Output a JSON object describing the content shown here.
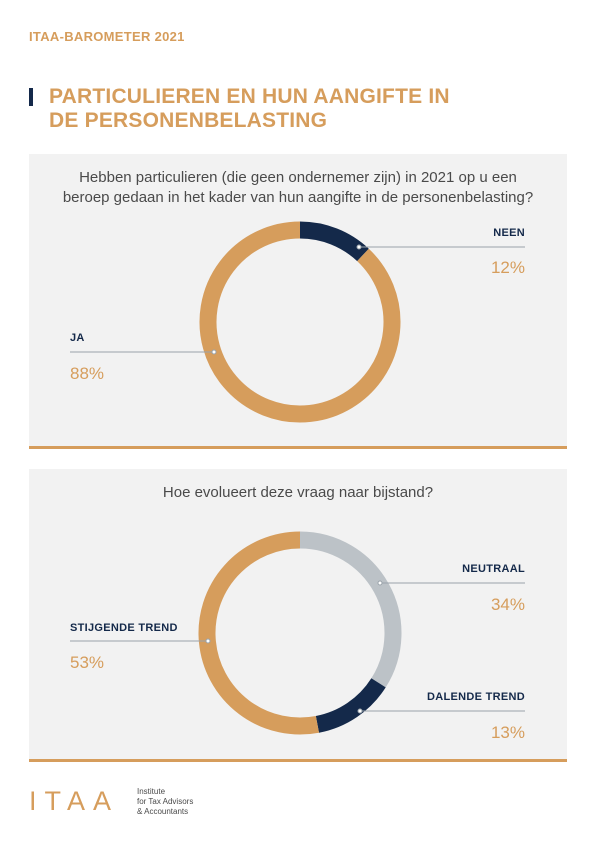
{
  "header": {
    "eyebrow": "ITAA-BAROMETER 2021",
    "title_line1": "PARTICULIEREN EN HUN AANGIFTE IN",
    "title_line2": "DE PERSONENBELASTING"
  },
  "colors": {
    "gold": "#d69d5c",
    "navy": "#14294a",
    "grey": "#bcc2c7"
  },
  "chart_data": [
    {
      "type": "pie",
      "donut": true,
      "title": "Hebben particulieren (die geen ondernemer zijn) in 2021 op u een beroep gedaan in het kader van hun aangifte in de personenbelasting?",
      "title_lines": [
        "Hebben particulieren (die geen ondernemer zijn) in 2021 op u een",
        "beroep gedaan in het kader van hun aangifte in de personenbelasting?"
      ],
      "slices": [
        {
          "label": "NEEN",
          "value": 12,
          "display": "12%",
          "color": "#14294a"
        },
        {
          "label": "JA",
          "value": 88,
          "display": "88%",
          "color": "#d69d5c"
        }
      ]
    },
    {
      "type": "pie",
      "donut": true,
      "title": "Hoe evolueert deze vraag naar bijstand?",
      "title_lines": [
        "Hoe evolueert deze vraag naar bijstand?"
      ],
      "slices": [
        {
          "label": "NEUTRAAL",
          "value": 34,
          "display": "34%",
          "color": "#bcc2c7"
        },
        {
          "label": "DALENDE TREND",
          "value": 13,
          "display": "13%",
          "color": "#14294a"
        },
        {
          "label": "STIJGENDE TREND",
          "value": 53,
          "display": "53%",
          "color": "#d69d5c"
        }
      ]
    }
  ],
  "footer": {
    "logo": "ITAA",
    "line1": "Institute",
    "line2": "for Tax Advisors",
    "line3": "& Accountants"
  }
}
